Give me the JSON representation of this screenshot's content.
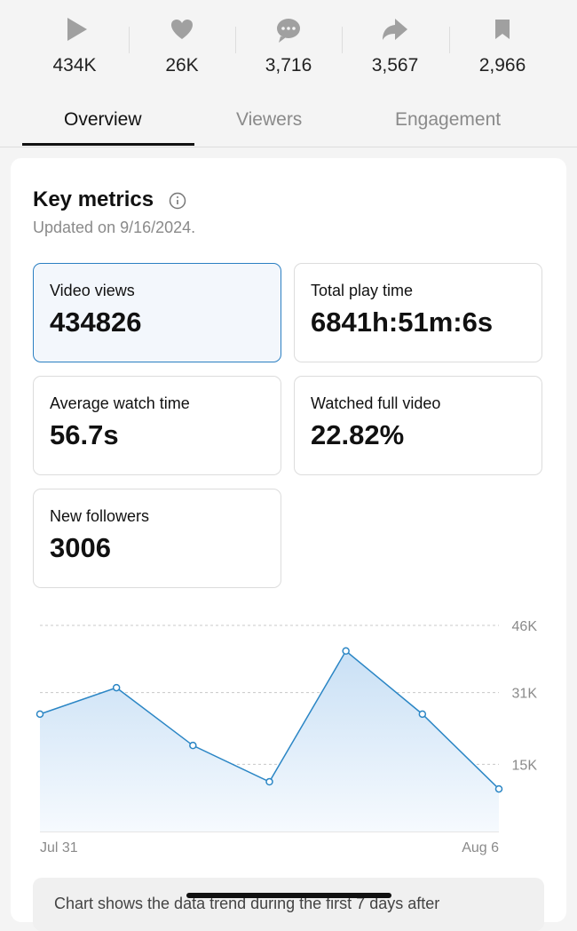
{
  "stats": [
    "434K",
    "26K",
    "3,716",
    "3,567",
    "2,966"
  ],
  "tabs": [
    "Overview",
    "Viewers",
    "Engagement"
  ],
  "key_metrics": {
    "title": "Key metrics",
    "updated": "Updated on 9/16/2024.",
    "items": [
      {
        "label": "Video views",
        "value": "434826"
      },
      {
        "label": "Total play time",
        "value": "6841h:51m:6s"
      },
      {
        "label": "Average watch time",
        "value": "56.7s"
      },
      {
        "label": "Watched full video",
        "value": "22.82%"
      },
      {
        "label": "New followers",
        "value": "3006"
      }
    ]
  },
  "chart": {
    "type": "line",
    "categories": [
      "Jul 31",
      null,
      null,
      null,
      null,
      null,
      "Aug 6"
    ],
    "values": [
      26200,
      32100,
      19200,
      11100,
      40300,
      26200,
      9500
    ],
    "color": "#2b86c5",
    "ylim": [
      0,
      46000
    ],
    "yticks": [
      {
        "value": 15000,
        "label": "15K"
      },
      {
        "value": 31000,
        "label": "31K"
      },
      {
        "value": 46000,
        "label": "46K"
      }
    ],
    "grid": true
  },
  "note": "Chart shows the data trend during the first 7 days after"
}
